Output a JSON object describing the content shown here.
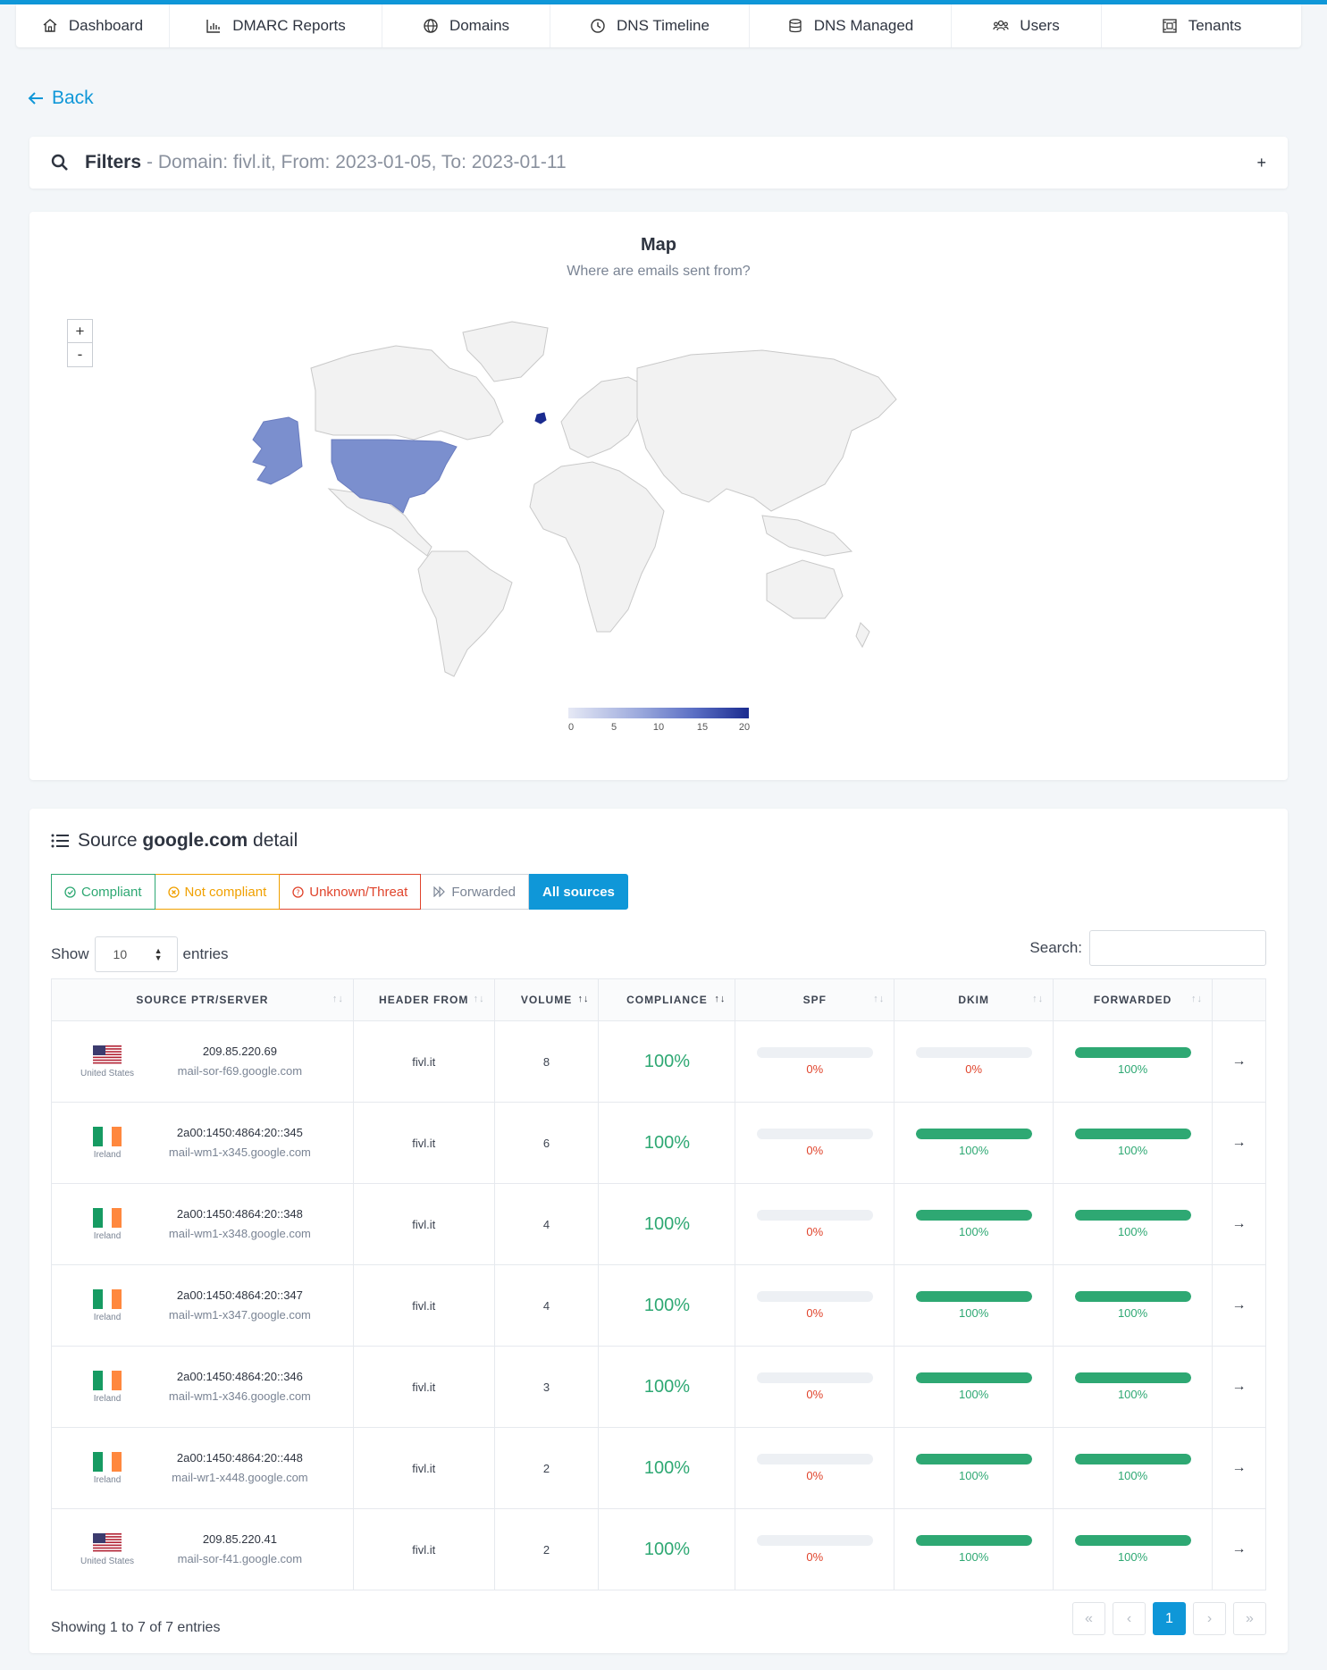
{
  "nav": [
    {
      "label": "Dashboard",
      "icon": "home-icon"
    },
    {
      "label": "DMARC Reports",
      "icon": "bar-chart-icon"
    },
    {
      "label": "Domains",
      "icon": "globe-icon"
    },
    {
      "label": "DNS Timeline",
      "icon": "clock-icon"
    },
    {
      "label": "DNS Managed",
      "icon": "database-icon"
    },
    {
      "label": "Users",
      "icon": "users-icon"
    },
    {
      "label": "Tenants",
      "icon": "tenants-icon"
    }
  ],
  "back_label": "Back",
  "filters": {
    "title": "Filters",
    "summary": "- Domain: fivl.it, From: 2023-01-05, To: 2023-01-11",
    "toggle": "+"
  },
  "map": {
    "title": "Map",
    "subtitle": "Where are emails sent from?",
    "zoom_in": "+",
    "zoom_out": "-",
    "legend_ticks": [
      "0",
      "5",
      "10",
      "15",
      "20"
    ],
    "highlighted": [
      {
        "country": "United States",
        "value": 10
      },
      {
        "country": "Ireland",
        "value": 19
      }
    ]
  },
  "detail": {
    "title_prefix": "Source ",
    "title_bold": "google.com",
    "title_suffix": " detail",
    "tabs": {
      "compliant": "Compliant",
      "not_compliant": "Not compliant",
      "unknown": "Unknown/Threat",
      "forwarded": "Forwarded",
      "all": "All sources"
    },
    "show_label": "Show",
    "entries_label": "entries",
    "page_size": "10",
    "search_label": "Search:",
    "columns": [
      "SOURCE PTR/SERVER",
      "HEADER FROM",
      "VOLUME",
      "COMPLIANCE",
      "SPF",
      "DKIM",
      "FORWARDED"
    ],
    "rows": [
      {
        "country": "United States",
        "flag": "us",
        "ip": "209.85.220.69",
        "ptr": "mail-sor-f69.google.com",
        "header_from": "fivl.it",
        "volume": "8",
        "compliance": "100%",
        "spf": 0,
        "spf_label": "0%",
        "dkim": 0,
        "dkim_label": "0%",
        "forwarded": 1,
        "forwarded_label": "100%"
      },
      {
        "country": "Ireland",
        "flag": "ie",
        "ip": "2a00:1450:4864:20::345",
        "ptr": "mail-wm1-x345.google.com",
        "header_from": "fivl.it",
        "volume": "6",
        "compliance": "100%",
        "spf": 0,
        "spf_label": "0%",
        "dkim": 1,
        "dkim_label": "100%",
        "forwarded": 1,
        "forwarded_label": "100%"
      },
      {
        "country": "Ireland",
        "flag": "ie",
        "ip": "2a00:1450:4864:20::348",
        "ptr": "mail-wm1-x348.google.com",
        "header_from": "fivl.it",
        "volume": "4",
        "compliance": "100%",
        "spf": 0,
        "spf_label": "0%",
        "dkim": 1,
        "dkim_label": "100%",
        "forwarded": 1,
        "forwarded_label": "100%"
      },
      {
        "country": "Ireland",
        "flag": "ie",
        "ip": "2a00:1450:4864:20::347",
        "ptr": "mail-wm1-x347.google.com",
        "header_from": "fivl.it",
        "volume": "4",
        "compliance": "100%",
        "spf": 0,
        "spf_label": "0%",
        "dkim": 1,
        "dkim_label": "100%",
        "forwarded": 1,
        "forwarded_label": "100%"
      },
      {
        "country": "Ireland",
        "flag": "ie",
        "ip": "2a00:1450:4864:20::346",
        "ptr": "mail-wm1-x346.google.com",
        "header_from": "fivl.it",
        "volume": "3",
        "compliance": "100%",
        "spf": 0,
        "spf_label": "0%",
        "dkim": 1,
        "dkim_label": "100%",
        "forwarded": 1,
        "forwarded_label": "100%"
      },
      {
        "country": "Ireland",
        "flag": "ie",
        "ip": "2a00:1450:4864:20::448",
        "ptr": "mail-wr1-x448.google.com",
        "header_from": "fivl.it",
        "volume": "2",
        "compliance": "100%",
        "spf": 0,
        "spf_label": "0%",
        "dkim": 1,
        "dkim_label": "100%",
        "forwarded": 1,
        "forwarded_label": "100%"
      },
      {
        "country": "United States",
        "flag": "us",
        "ip": "209.85.220.41",
        "ptr": "mail-sor-f41.google.com",
        "header_from": "fivl.it",
        "volume": "2",
        "compliance": "100%",
        "spf": 0,
        "spf_label": "0%",
        "dkim": 1,
        "dkim_label": "100%",
        "forwarded": 1,
        "forwarded_label": "100%"
      }
    ],
    "footer": "Showing 1 to 7 of 7 entries",
    "pager": {
      "first": "«",
      "prev": "‹",
      "current": "1",
      "next": "›",
      "last": "»"
    }
  },
  "colors": {
    "accent": "#0f97d8",
    "green": "#2ea873",
    "orange": "#f0a000",
    "red": "#e0442c",
    "us_fill": "#7b8fce",
    "ie_fill": "#1a2b8f",
    "land": "#f2f2f2"
  }
}
